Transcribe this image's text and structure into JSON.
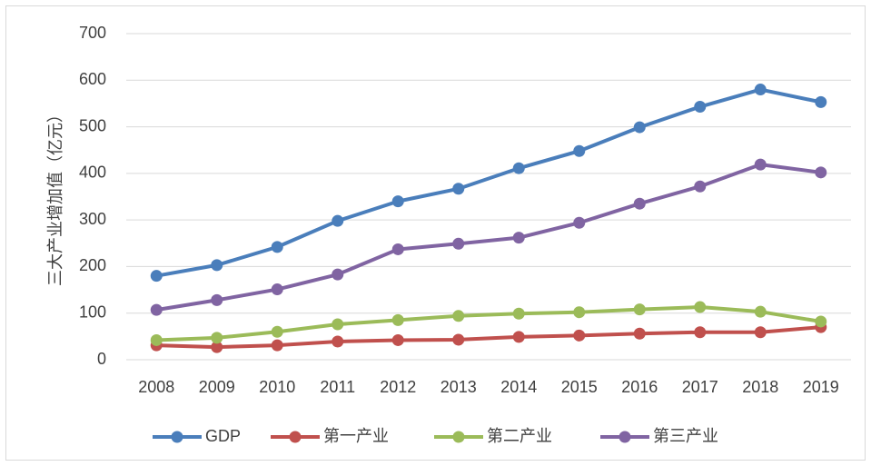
{
  "chart_data": {
    "type": "line",
    "y_label": "三大产业增加值（亿元）",
    "categories": [
      "2008",
      "2009",
      "2010",
      "2011",
      "2012",
      "2013",
      "2014",
      "2015",
      "2016",
      "2017",
      "2018",
      "2019"
    ],
    "series": [
      {
        "name": "GDP",
        "color": "#4a7ebb",
        "values": [
          180,
          203,
          242,
          298,
          340,
          367,
          411,
          448,
          499,
          543,
          580,
          553
        ]
      },
      {
        "name": "第一产业",
        "color": "#c0504d",
        "values": [
          31,
          27,
          31,
          39,
          42,
          43,
          49,
          52,
          56,
          59,
          59,
          70
        ]
      },
      {
        "name": "第二产业",
        "color": "#9bbb59",
        "values": [
          42,
          47,
          60,
          76,
          85,
          94,
          99,
          102,
          108,
          113,
          103,
          82
        ]
      },
      {
        "name": "第三产业",
        "color": "#8064a2",
        "values": [
          107,
          128,
          151,
          183,
          237,
          249,
          262,
          294,
          335,
          372,
          419,
          402
        ]
      }
    ],
    "ylim": [
      0,
      700
    ],
    "yticks": [
      0,
      100,
      200,
      300,
      400,
      500,
      600,
      700
    ],
    "grid": true,
    "legend": "bottom"
  }
}
